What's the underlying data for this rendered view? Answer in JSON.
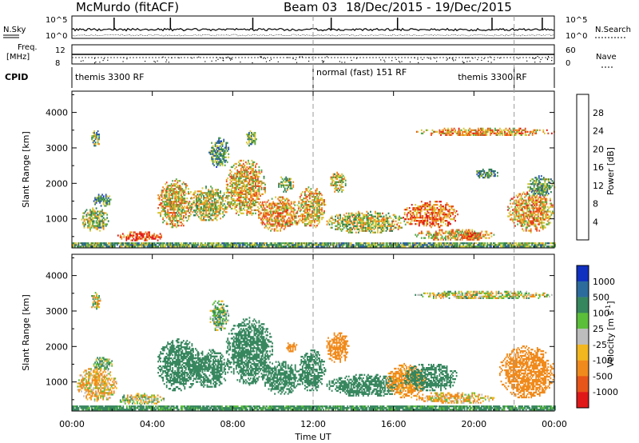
{
  "header": {
    "radar": "McMurdo (fitACF)",
    "beam": "Beam 03",
    "dates": "18/Dec/2015 - 19/Dec/2015"
  },
  "summary_panels": {
    "nsky_label": "N.Sky",
    "nsearch_label": "N.Search",
    "nsky_ticks": [
      "10^5",
      "10^0"
    ],
    "nsearch_ticks": [
      "10^5",
      "10^0"
    ],
    "freq_label_1": "Freq.",
    "freq_label_2": "[MHz]",
    "freq_ticks": [
      "12",
      "8"
    ],
    "nave_label": "Nave",
    "nave_ticks": [
      "60",
      "0"
    ],
    "cpid_label": "CPID",
    "cpid_segments": [
      {
        "label": "themis 3300 RF",
        "start_hour": 0,
        "end_hour": 12
      },
      {
        "label": "normal (fast) 151 RF",
        "start_hour": 12,
        "end_hour": 22
      },
      {
        "label": "themis 3300 RF",
        "start_hour": 22,
        "end_hour": 24
      }
    ]
  },
  "colorbars": {
    "power": {
      "label": "Power [dB]",
      "ticks": [
        "4",
        "8",
        "12",
        "16",
        "20",
        "24",
        "28"
      ],
      "colors": [
        "#1a2ee6",
        "#2a5aa6",
        "#2f7f55",
        "#5aa84a",
        "#d8c83a",
        "#f08a20",
        "#e84a20",
        "#e01818"
      ]
    },
    "velocity": {
      "label": "Velocity [m s",
      "label_sup": "-1",
      "label_end": "]",
      "ticks": [
        "1000",
        "500",
        "100",
        "25",
        "-25",
        "-100",
        "-500",
        "-1000"
      ],
      "colors": [
        "#1030c0",
        "#2c6c9c",
        "#36865e",
        "#5cbf3a",
        "#bdbdbd",
        "#f2b61e",
        "#f08a1c",
        "#e85518",
        "#e01818"
      ]
    }
  },
  "x_axis": {
    "label": "Time UT",
    "ticks": [
      "00:00",
      "04:00",
      "08:00",
      "12:00",
      "16:00",
      "20:00",
      "00:00"
    ]
  },
  "y_axis": {
    "label": "Slant Range [km]",
    "ticks": [
      "1000",
      "2000",
      "3000",
      "4000"
    ]
  },
  "chart_data": {
    "type": "heatmap",
    "title": "McMurdo (fitACF)   Beam 03   18/Dec/2015 - 19/Dec/2015",
    "xlabel": "Time UT",
    "ylabel": "Slant Range [km]",
    "xlim_hours": [
      0,
      24
    ],
    "ylim_km": [
      180,
      4600
    ],
    "grid": false,
    "marker_lines_hours": [
      12,
      22
    ],
    "panels": [
      {
        "name": "Power",
        "colorbar_label": "Power [dB]",
        "zlim": [
          0,
          30
        ],
        "echo_regions": [
          {
            "t0": 0.0,
            "t1": 24.0,
            "r0": 200,
            "r1": 320,
            "value": 12
          },
          {
            "t0": 2.2,
            "t1": 4.6,
            "r0": 330,
            "r1": 620,
            "value": 24
          },
          {
            "t0": 0.4,
            "t1": 1.8,
            "r0": 600,
            "r1": 1300,
            "value": 14
          },
          {
            "t0": 1.0,
            "t1": 2.0,
            "r0": 1300,
            "r1": 1700,
            "value": 10
          },
          {
            "t0": 0.9,
            "t1": 1.4,
            "r0": 3000,
            "r1": 3500,
            "value": 12
          },
          {
            "t0": 4.2,
            "t1": 6.0,
            "r0": 700,
            "r1": 2100,
            "value": 18
          },
          {
            "t0": 5.8,
            "t1": 7.8,
            "r0": 900,
            "r1": 1900,
            "value": 16
          },
          {
            "t0": 6.8,
            "t1": 7.8,
            "r0": 2400,
            "r1": 3300,
            "value": 10
          },
          {
            "t0": 7.6,
            "t1": 9.6,
            "r0": 1000,
            "r1": 2700,
            "value": 18
          },
          {
            "t0": 9.2,
            "t1": 11.4,
            "r0": 600,
            "r1": 1600,
            "value": 20
          },
          {
            "t0": 8.6,
            "t1": 9.2,
            "r0": 3000,
            "r1": 3500,
            "value": 12
          },
          {
            "t0": 10.2,
            "t1": 11.0,
            "r0": 1700,
            "r1": 2200,
            "value": 14
          },
          {
            "t0": 11.2,
            "t1": 12.6,
            "r0": 700,
            "r1": 1900,
            "value": 18
          },
          {
            "t0": 12.8,
            "t1": 13.6,
            "r0": 1700,
            "r1": 2300,
            "value": 16
          },
          {
            "t0": 12.6,
            "t1": 16.6,
            "r0": 550,
            "r1": 1200,
            "value": 16
          },
          {
            "t0": 16.4,
            "t1": 19.2,
            "r0": 700,
            "r1": 1500,
            "value": 22
          },
          {
            "t0": 17.0,
            "t1": 21.0,
            "r0": 350,
            "r1": 700,
            "value": 18
          },
          {
            "t0": 19.2,
            "t1": 20.4,
            "r0": 350,
            "r1": 600,
            "value": 26
          },
          {
            "t0": 17.0,
            "t1": 24.0,
            "r0": 3300,
            "r1": 3550,
            "value": 20
          },
          {
            "t0": 20.0,
            "t1": 21.2,
            "r0": 2100,
            "r1": 2400,
            "value": 10
          },
          {
            "t0": 21.6,
            "t1": 24.0,
            "r0": 600,
            "r1": 1800,
            "value": 20
          },
          {
            "t0": 22.6,
            "t1": 24.0,
            "r0": 1600,
            "r1": 2200,
            "value": 12
          }
        ]
      },
      {
        "name": "Velocity",
        "colorbar_label": "Velocity [m s-1]",
        "zlim": [
          -1000,
          1000
        ],
        "echo_regions": [
          {
            "t0": 0.0,
            "t1": 24.0,
            "r0": 200,
            "r1": 330,
            "value": 200
          },
          {
            "t0": 2.2,
            "t1": 4.6,
            "r0": 330,
            "r1": 650,
            "value": 0
          },
          {
            "t0": 0.2,
            "t1": 2.2,
            "r0": 400,
            "r1": 1400,
            "value": -100
          },
          {
            "t0": 1.0,
            "t1": 2.0,
            "r0": 1300,
            "r1": 1700,
            "value": 100
          },
          {
            "t0": 0.9,
            "t1": 1.4,
            "r0": 3000,
            "r1": 3500,
            "value": 0
          },
          {
            "t0": 4.2,
            "t1": 6.4,
            "r0": 700,
            "r1": 2200,
            "value": 300
          },
          {
            "t0": 5.8,
            "t1": 7.8,
            "r0": 800,
            "r1": 1900,
            "value": 300
          },
          {
            "t0": 6.8,
            "t1": 7.8,
            "r0": 2400,
            "r1": 3300,
            "value": 100
          },
          {
            "t0": 7.6,
            "t1": 10.0,
            "r0": 900,
            "r1": 2800,
            "value": 300
          },
          {
            "t0": 9.4,
            "t1": 11.4,
            "r0": 600,
            "r1": 1600,
            "value": 300
          },
          {
            "t0": 10.6,
            "t1": 11.2,
            "r0": 1800,
            "r1": 2100,
            "value": -300
          },
          {
            "t0": 11.2,
            "t1": 12.6,
            "r0": 700,
            "r1": 1900,
            "value": 300
          },
          {
            "t0": 12.6,
            "t1": 13.8,
            "r0": 1500,
            "r1": 2400,
            "value": -300
          },
          {
            "t0": 12.6,
            "t1": 16.6,
            "r0": 550,
            "r1": 1200,
            "value": 300
          },
          {
            "t0": 15.6,
            "t1": 17.6,
            "r0": 500,
            "r1": 1500,
            "value": -200
          },
          {
            "t0": 16.4,
            "t1": 19.2,
            "r0": 700,
            "r1": 1500,
            "value": 300
          },
          {
            "t0": 17.0,
            "t1": 21.0,
            "r0": 350,
            "r1": 700,
            "value": -100
          },
          {
            "t0": 17.0,
            "t1": 24.0,
            "r0": 3300,
            "r1": 3550,
            "value": 0
          },
          {
            "t0": 21.2,
            "t1": 24.0,
            "r0": 500,
            "r1": 2000,
            "value": -300
          }
        ]
      }
    ]
  }
}
